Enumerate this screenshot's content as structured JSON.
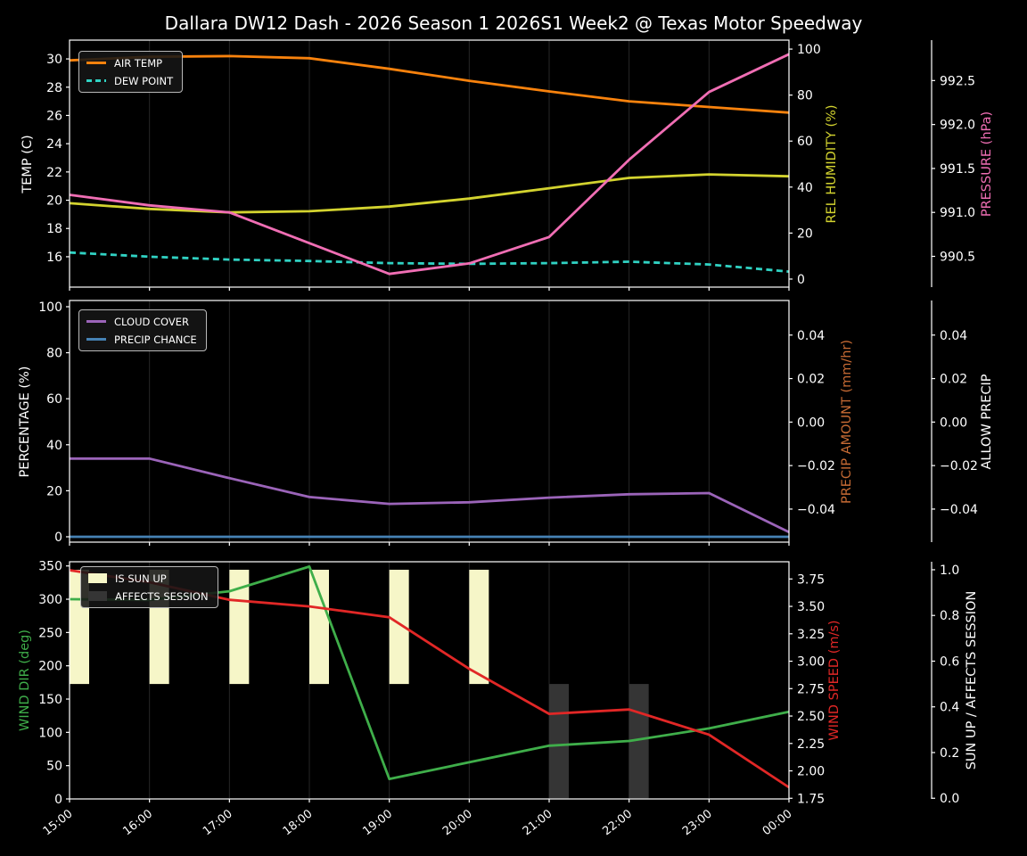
{
  "title": "Dallara DW12 Dash - 2026 Season 1 2026S1 Week2 @ Texas Motor Speedway",
  "x_labels": [
    "15:00",
    "16:00",
    "17:00",
    "18:00",
    "19:00",
    "20:00",
    "21:00",
    "22:00",
    "23:00",
    "00:00"
  ],
  "figure": {
    "background": "#000000",
    "grid_color": "#262626",
    "spine_color": "#ffffff",
    "tick_label_color": "#ffffff"
  },
  "chart_data": [
    {
      "type": "line",
      "name": "temperature-humidity-pressure",
      "axes": [
        {
          "position": "left",
          "label": "TEMP (C)",
          "label_color": "#ffffff",
          "range": [
            13.85,
            31.33
          ],
          "ticks": [
            16,
            18,
            20,
            22,
            24,
            26,
            28,
            30
          ],
          "tick_labels": [
            "16",
            "18",
            "20",
            "22",
            "24",
            "26",
            "28",
            "30"
          ]
        },
        {
          "position": "right-inner",
          "label": "REL HUMIDITY (%)",
          "label_color": "#d3d32f",
          "range": [
            -3.5,
            103.9
          ],
          "ticks": [
            0,
            20,
            40,
            60,
            80,
            100
          ],
          "tick_labels": [
            "0",
            "20",
            "40",
            "60",
            "80",
            "100"
          ]
        },
        {
          "position": "right-outer",
          "label": "PRESSURE (hPa)",
          "label_color": "#f06eb4",
          "range": [
            990.15,
            992.96
          ],
          "ticks": [
            990.5,
            991.0,
            991.5,
            992.0,
            992.5
          ],
          "tick_labels": [
            "990.5",
            "991.0",
            "991.5",
            "992.0",
            "992.5"
          ]
        }
      ],
      "series": [
        {
          "name": "AIR TEMP",
          "axis": 0,
          "color": "#f8820d",
          "dash": false,
          "values": [
            29.9,
            30.15,
            30.2,
            30.05,
            29.3,
            28.45,
            27.7,
            27.0,
            26.6,
            26.2
          ]
        },
        {
          "name": "DEW POINT",
          "axis": 0,
          "color": "#30d2c3",
          "dash": true,
          "values": [
            16.3,
            16.0,
            15.8,
            15.7,
            15.55,
            15.5,
            15.55,
            15.65,
            15.45,
            14.95
          ]
        },
        {
          "name": "REL HUMIDITY",
          "axis": 1,
          "color": "#d3d32f",
          "dash": false,
          "values": [
            33,
            30.5,
            29,
            29.5,
            31.5,
            35,
            39.5,
            44,
            45.5,
            44.7
          ]
        },
        {
          "name": "PRESSURE",
          "axis": 2,
          "color": "#f06eb4",
          "dash": false,
          "values": [
            991.2,
            991.08,
            991.0,
            990.65,
            990.3,
            990.42,
            990.72,
            991.6,
            992.37,
            992.8
          ]
        }
      ],
      "legend": [
        {
          "label": "AIR TEMP",
          "color": "#f8820d",
          "swatch": "line"
        },
        {
          "label": "DEW POINT",
          "color": "#30d2c3",
          "swatch": "dashed"
        }
      ]
    },
    {
      "type": "line",
      "name": "cloud-precip",
      "axes": [
        {
          "position": "left",
          "label": "PERCENTAGE (%)",
          "label_color": "#ffffff",
          "range": [
            -2.33,
            102.71
          ],
          "ticks": [
            0,
            20,
            40,
            60,
            80,
            100
          ],
          "tick_labels": [
            "0",
            "20",
            "40",
            "60",
            "80",
            "100"
          ]
        },
        {
          "position": "right-inner",
          "label": "PRECIP AMOUNT (mm/hr)",
          "label_color": "#c76b34",
          "range": [
            -0.0552,
            0.0559
          ],
          "ticks": [
            0.04,
            0.02,
            0,
            -0.02,
            -0.04
          ],
          "tick_labels": [
            "0.04",
            "0.02",
            "0.00",
            "−0.02",
            "−0.04"
          ]
        },
        {
          "position": "right-outer",
          "label": "ALLOW PRECIP",
          "label_color": "#ffffff",
          "range": [
            -0.0552,
            0.0559
          ],
          "ticks": [
            0.04,
            0.02,
            0,
            -0.02,
            -0.04
          ],
          "tick_labels": [
            "0.04",
            "0.02",
            "0.00",
            "−0.02",
            "−0.04"
          ]
        }
      ],
      "series": [
        {
          "name": "CLOUD COVER",
          "axis": 0,
          "color": "#9b64b9",
          "dash": false,
          "values": [
            34,
            34,
            25.5,
            17.3,
            14.3,
            15,
            17,
            18.5,
            19,
            2
          ]
        },
        {
          "name": "PRECIP CHANCE",
          "axis": 0,
          "color": "#4682b4",
          "dash": false,
          "values": [
            0,
            0,
            0,
            0,
            0,
            0,
            0,
            0,
            0,
            0
          ]
        }
      ],
      "legend": [
        {
          "label": "CLOUD COVER",
          "color": "#9b64b9",
          "swatch": "line"
        },
        {
          "label": "PRECIP CHANCE",
          "color": "#4682b4",
          "swatch": "line"
        }
      ]
    },
    {
      "type": "line",
      "name": "wind-sun",
      "axes": [
        {
          "position": "left",
          "label": "WIND DIR (deg)",
          "label_color": "#3fae4a",
          "range": [
            0,
            356.3
          ],
          "ticks": [
            0,
            50,
            100,
            150,
            200,
            250,
            300,
            350
          ],
          "tick_labels": [
            "0",
            "50",
            "100",
            "150",
            "200",
            "250",
            "300",
            "350"
          ]
        },
        {
          "position": "right-inner",
          "label": "WIND SPEED (m/s)",
          "label_color": "#e12726",
          "range": [
            1.744,
            3.907
          ],
          "ticks": [
            1.75,
            2.0,
            2.25,
            2.5,
            2.75,
            3.0,
            3.25,
            3.5,
            3.75
          ],
          "tick_labels": [
            "1.75",
            "2.00",
            "2.25",
            "2.50",
            "2.75",
            "3.00",
            "3.25",
            "3.50",
            "3.75"
          ]
        },
        {
          "position": "right-outer",
          "label": "SUN UP / AFFECTS SESSION",
          "label_color": "#ffffff",
          "range": [
            -0.003,
            1.035
          ],
          "ticks": [
            0.0,
            0.2,
            0.4,
            0.6,
            0.8,
            1.0
          ],
          "tick_labels": [
            "0.0",
            "0.2",
            "0.4",
            "0.6",
            "0.8",
            "1.0"
          ]
        }
      ],
      "series": [
        {
          "name": "WIND DIR",
          "axis": 0,
          "color": "#3fae4a",
          "dash": false,
          "values": [
            300,
            299,
            312,
            349,
            30,
            55,
            80,
            87,
            106,
            131
          ]
        },
        {
          "name": "WIND SPEED",
          "axis": 1,
          "color": "#e12726",
          "dash": false,
          "values": [
            3.83,
            3.72,
            3.56,
            3.5,
            3.4,
            2.93,
            2.52,
            2.56,
            2.33,
            1.85
          ]
        }
      ],
      "bars": [
        {
          "name": "IS SUN UP",
          "color": "#f6f6c8",
          "axis": 2,
          "from": 0.5,
          "to": 1.0,
          "hour_indices": [
            0,
            1,
            2,
            3,
            4,
            5
          ]
        },
        {
          "name": "AFFECTS SESSION",
          "color": "#353535",
          "axis": 2,
          "from": 0.0,
          "to": 0.5,
          "hour_indices": [
            6,
            7
          ]
        }
      ],
      "legend": [
        {
          "label": "IS SUN UP",
          "color": "#f6f6c8",
          "swatch": "patch"
        },
        {
          "label": "AFFECTS SESSION",
          "color": "#353535",
          "swatch": "patch"
        }
      ]
    }
  ]
}
